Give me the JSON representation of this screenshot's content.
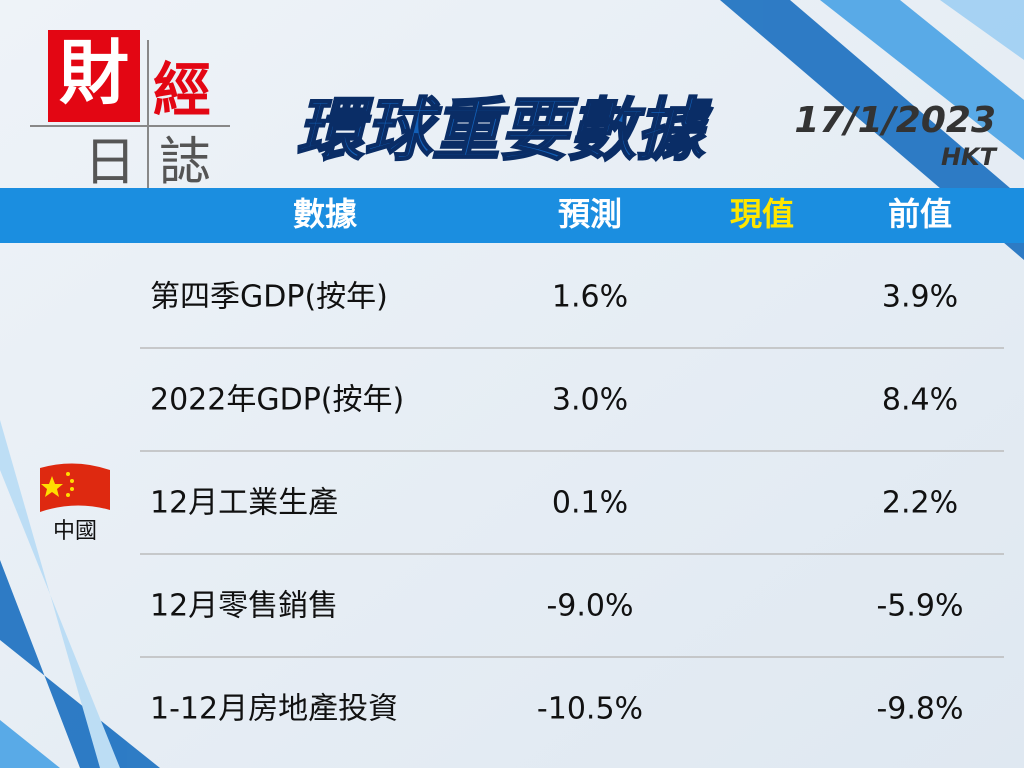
{
  "logo": {
    "chars": [
      "財",
      "經",
      "日",
      "誌"
    ]
  },
  "header": {
    "title": "環球重要數據",
    "date": "17/1/2023",
    "timezone": "HKT"
  },
  "table": {
    "columns": [
      "數據",
      "預測",
      "現值",
      "前值"
    ],
    "country": "中國",
    "rows": [
      {
        "label": "第四季GDP(按年)",
        "forecast": "1.6%",
        "previous": "3.9%"
      },
      {
        "label": "2022年GDP(按年)",
        "forecast": "3.0%",
        "previous": "8.4%"
      },
      {
        "label": "12月工業生產",
        "forecast": "0.1%",
        "previous": "2.2%"
      },
      {
        "label": "12月零售銷售",
        "forecast": "-9.0%",
        "previous": "-5.9%"
      },
      {
        "label": "1-12月房地產投資",
        "forecast": "-10.5%",
        "previous": "-9.8%"
      }
    ]
  }
}
